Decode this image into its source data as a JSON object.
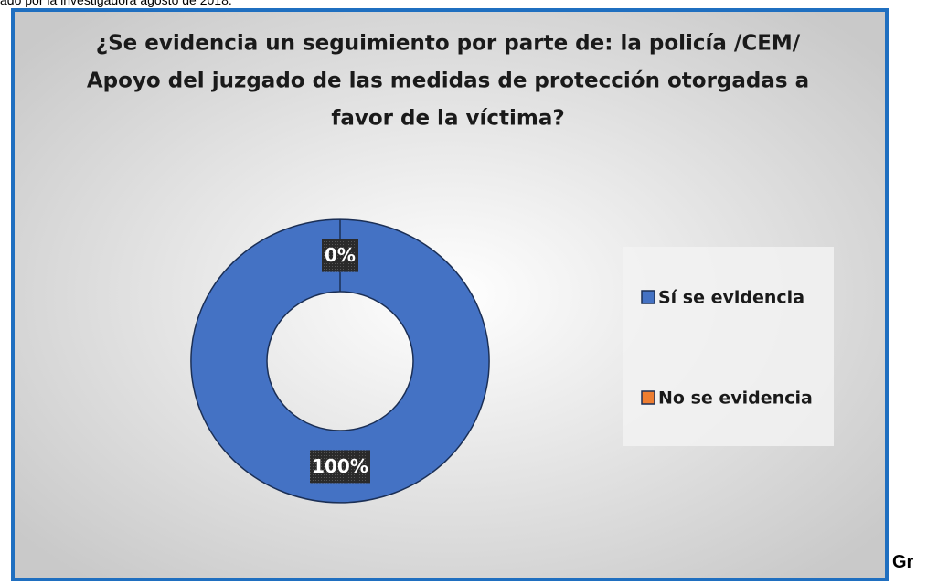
{
  "caption": "ado por la investigadora agosto de 2018.",
  "trailing_text": "Gr",
  "chart_data": {
    "type": "donut",
    "title": [
      "¿Se evidencia un seguimiento por parte de: la policía /CEM/",
      "Apoyo del juzgado de las medidas de protección otorgadas a",
      "favor de la víctima?"
    ],
    "categories": [
      "Sí se evidencia",
      "No se evidencia"
    ],
    "values": [
      100,
      0
    ],
    "value_labels": [
      "100%",
      "0%"
    ],
    "colors": [
      "#4472c4",
      "#ed7d31"
    ],
    "legend": "right"
  }
}
